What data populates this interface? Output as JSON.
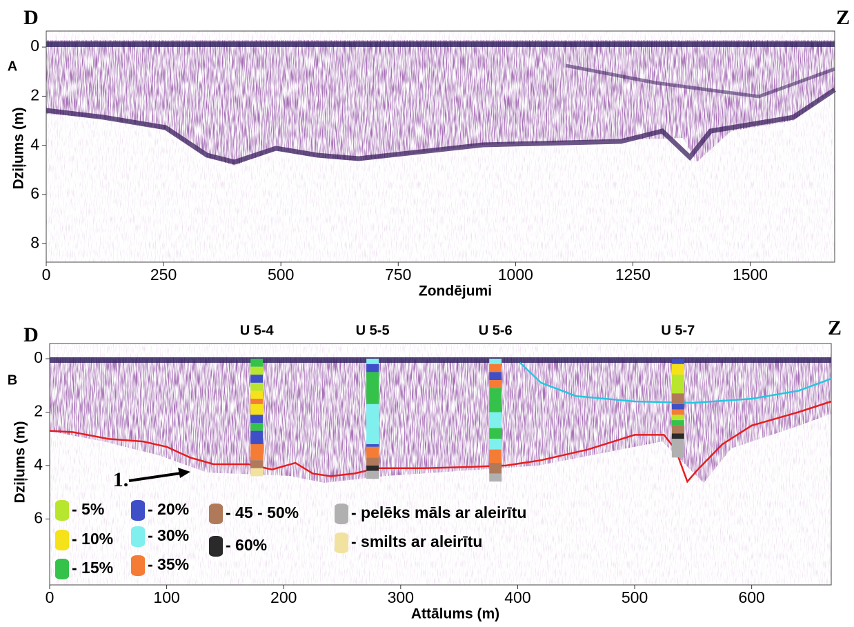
{
  "chart_data": [
    {
      "type": "radargram",
      "panel_label": "A",
      "left_label": "D",
      "right_label": "Z",
      "ylabel": "Dziļums (m)",
      "xlabel": "Zondējumi",
      "xlim": [
        0,
        1680
      ],
      "xticks": [
        0,
        250,
        500,
        750,
        1000,
        1250,
        1500
      ],
      "ylim": [
        8.75,
        -0.65
      ],
      "yticks": [
        0,
        2,
        4,
        6,
        8
      ]
    },
    {
      "type": "radargram",
      "panel_label": "B",
      "left_label": "D",
      "right_label": "Z",
      "ylabel": "Dziļums (m)",
      "xlabel": "Attālums (m)",
      "xlim": [
        0,
        668
      ],
      "xticks": [
        0,
        100,
        200,
        300,
        400,
        500,
        600
      ],
      "ylim": [
        8.47,
        -0.57
      ],
      "yticks": [
        0,
        2,
        4,
        6
      ],
      "series": [
        {
          "color": "#e41e1e",
          "x": [
            0,
            20,
            50,
            80,
            100,
            120,
            140,
            170,
            190,
            210,
            225,
            240,
            260,
            280,
            320,
            360,
            390,
            420,
            460,
            500,
            525,
            535,
            545,
            555,
            575,
            600,
            640,
            668
          ],
          "values": [
            2.7,
            2.75,
            3.0,
            3.1,
            3.3,
            3.7,
            3.95,
            3.95,
            4.15,
            3.9,
            4.3,
            4.4,
            4.3,
            4.1,
            4.1,
            4.05,
            4.0,
            3.8,
            3.4,
            2.85,
            2.85,
            3.4,
            4.6,
            4.1,
            3.2,
            2.5,
            2.0,
            1.6
          ]
        },
        {
          "color": "#22c8e0",
          "x": [
            402,
            420,
            450,
            500,
            550,
            600,
            640,
            668
          ],
          "values": [
            0.15,
            0.9,
            1.4,
            1.6,
            1.65,
            1.5,
            1.2,
            0.75
          ]
        }
      ],
      "boreholes": [
        {
          "name": "U 5-4",
          "x": 177,
          "layers": [
            {
              "top": 0,
              "bottom": 0.3,
              "color": "#35c24a"
            },
            {
              "top": 0.3,
              "bottom": 0.6,
              "color": "#b8e62e"
            },
            {
              "top": 0.6,
              "bottom": 0.9,
              "color": "#3f4fc8"
            },
            {
              "top": 0.9,
              "bottom": 1.2,
              "color": "#b8e62e"
            },
            {
              "top": 1.2,
              "bottom": 1.5,
              "color": "#f5e21b"
            },
            {
              "top": 1.5,
              "bottom": 1.7,
              "color": "#f57c35"
            },
            {
              "top": 1.7,
              "bottom": 2.1,
              "color": "#f5e21b"
            },
            {
              "top": 2.1,
              "bottom": 2.4,
              "color": "#3f4fc8"
            },
            {
              "top": 2.4,
              "bottom": 2.7,
              "color": "#35c24a"
            },
            {
              "top": 2.7,
              "bottom": 3.2,
              "color": "#3f4fc8"
            },
            {
              "top": 3.2,
              "bottom": 3.8,
              "color": "#f57c35"
            },
            {
              "top": 3.8,
              "bottom": 4.1,
              "color": "#b07a5a"
            },
            {
              "top": 4.1,
              "bottom": 4.4,
              "color": "#f2e2a0"
            }
          ]
        },
        {
          "name": "U 5-5",
          "x": 276,
          "layers": [
            {
              "top": 0,
              "bottom": 0.2,
              "color": "#7ff0ee"
            },
            {
              "top": 0.2,
              "bottom": 0.5,
              "color": "#3f4fc8"
            },
            {
              "top": 0.5,
              "bottom": 1.7,
              "color": "#35c24a"
            },
            {
              "top": 1.7,
              "bottom": 3.2,
              "color": "#7ff0ee"
            },
            {
              "top": 3.2,
              "bottom": 3.3,
              "color": "#3f4fc8"
            },
            {
              "top": 3.3,
              "bottom": 3.7,
              "color": "#f57c35"
            },
            {
              "top": 3.7,
              "bottom": 4.0,
              "color": "#b07a5a"
            },
            {
              "top": 4.0,
              "bottom": 4.2,
              "color": "#2a2a2a"
            },
            {
              "top": 4.2,
              "bottom": 4.5,
              "color": "#b0b0b0"
            }
          ]
        },
        {
          "name": "U 5-6",
          "x": 381,
          "layers": [
            {
              "top": 0,
              "bottom": 0.2,
              "color": "#7ff0ee"
            },
            {
              "top": 0.2,
              "bottom": 0.5,
              "color": "#f57c35"
            },
            {
              "top": 0.5,
              "bottom": 0.8,
              "color": "#3f4fc8"
            },
            {
              "top": 0.8,
              "bottom": 1.1,
              "color": "#f57c35"
            },
            {
              "top": 1.1,
              "bottom": 2.0,
              "color": "#35c24a"
            },
            {
              "top": 2.0,
              "bottom": 2.6,
              "color": "#7ff0ee"
            },
            {
              "top": 2.6,
              "bottom": 3.0,
              "color": "#35c24a"
            },
            {
              "top": 3.0,
              "bottom": 3.4,
              "color": "#7ff0ee"
            },
            {
              "top": 3.4,
              "bottom": 3.9,
              "color": "#f57c35"
            },
            {
              "top": 3.9,
              "bottom": 4.3,
              "color": "#b07a5a"
            },
            {
              "top": 4.3,
              "bottom": 4.6,
              "color": "#b0b0b0"
            }
          ]
        },
        {
          "name": "U 5-7",
          "x": 537,
          "layers": [
            {
              "top": 0,
              "bottom": 0.2,
              "color": "#3f4fc8"
            },
            {
              "top": 0.2,
              "bottom": 0.6,
              "color": "#f5e21b"
            },
            {
              "top": 0.6,
              "bottom": 1.3,
              "color": "#b8e62e"
            },
            {
              "top": 1.3,
              "bottom": 1.7,
              "color": "#b07a5a"
            },
            {
              "top": 1.7,
              "bottom": 1.9,
              "color": "#3f4fc8"
            },
            {
              "top": 1.9,
              "bottom": 2.1,
              "color": "#f57c35"
            },
            {
              "top": 2.1,
              "bottom": 2.3,
              "color": "#b8e62e"
            },
            {
              "top": 2.3,
              "bottom": 2.5,
              "color": "#35c24a"
            },
            {
              "top": 2.5,
              "bottom": 2.8,
              "color": "#b07a5a"
            },
            {
              "top": 2.8,
              "bottom": 3.0,
              "color": "#2a2a2a"
            },
            {
              "top": 3.0,
              "bottom": 3.7,
              "color": "#b0b0b0"
            }
          ]
        }
      ],
      "annotations": [
        {
          "text": "1."
        }
      ],
      "legend": [
        {
          "name": "- 5%",
          "color": "#b8e62e"
        },
        {
          "name": "- 10%",
          "color": "#f5e21b"
        },
        {
          "name": "- 15%",
          "color": "#35c24a"
        },
        {
          "name": "- 20%",
          "color": "#3f4fc8"
        },
        {
          "name": "- 30%",
          "color": "#7ff0ee"
        },
        {
          "name": "- 35%",
          "color": "#f57c35"
        },
        {
          "name": "- 45 - 50%",
          "color": "#b07a5a"
        },
        {
          "name": "- 60%",
          "color": "#2a2a2a"
        },
        {
          "name": "- pelēks māls ar aleirītu",
          "color": "#b0b0b0"
        },
        {
          "name": "- smilts ar aleirītu",
          "color": "#f2e2a0"
        }
      ]
    }
  ]
}
